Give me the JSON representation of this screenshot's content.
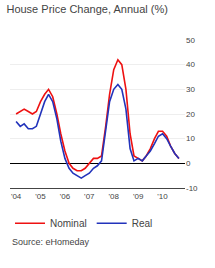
{
  "chart_data": {
    "type": "line",
    "title": "House Price Change, Annual (%)",
    "annotations": [
      "Source: eHomeday"
    ],
    "x": [
      2004.0,
      2004.17,
      2004.33,
      2004.5,
      2004.67,
      2004.83,
      2005.0,
      2005.17,
      2005.33,
      2005.5,
      2005.67,
      2005.83,
      2006.0,
      2006.17,
      2006.33,
      2006.5,
      2006.67,
      2006.83,
      2007.0,
      2007.17,
      2007.33,
      2007.5,
      2007.67,
      2007.83,
      2008.0,
      2008.17,
      2008.33,
      2008.5,
      2008.67,
      2008.83,
      2009.0,
      2009.17,
      2009.33,
      2009.5,
      2009.67,
      2009.83,
      2010.0,
      2010.17,
      2010.33,
      2010.5,
      2010.67
    ],
    "series": [
      {
        "name": "Nominal",
        "color": "#ee1111",
        "values": [
          20,
          21,
          22,
          21,
          20,
          21,
          25,
          28,
          30,
          27,
          20,
          12,
          5,
          0,
          -2,
          -3,
          -3,
          -2,
          0,
          2,
          2,
          3,
          15,
          28,
          38,
          42,
          40,
          30,
          12,
          3,
          2,
          1,
          3,
          6,
          10,
          13,
          13,
          11,
          7,
          4,
          2
        ]
      },
      {
        "name": "Real",
        "color": "#2233bb",
        "values": [
          17,
          15,
          16,
          14,
          14,
          15,
          20,
          25,
          28,
          25,
          18,
          9,
          2,
          -2,
          -4,
          -5,
          -6,
          -5,
          -4,
          -2,
          -1,
          1,
          14,
          25,
          30,
          32,
          30,
          22,
          6,
          1,
          2,
          1,
          3,
          5,
          8,
          11,
          12,
          10,
          7,
          4,
          2
        ]
      }
    ],
    "xlim": [
      2003.75,
      2010.92
    ],
    "xticks": [
      {
        "value": 2004,
        "label": "'04"
      },
      {
        "value": 2005,
        "label": "'05"
      },
      {
        "value": 2006,
        "label": "'06"
      },
      {
        "value": 2007,
        "label": "'07"
      },
      {
        "value": 2008,
        "label": "'08"
      },
      {
        "value": 2009,
        "label": "'09"
      },
      {
        "value": 2010,
        "label": "'10"
      }
    ],
    "ylim": [
      -10,
      50
    ],
    "yticks": [
      -10,
      0,
      10,
      20,
      30,
      40,
      50
    ],
    "grid": true,
    "legend": "bottom"
  }
}
